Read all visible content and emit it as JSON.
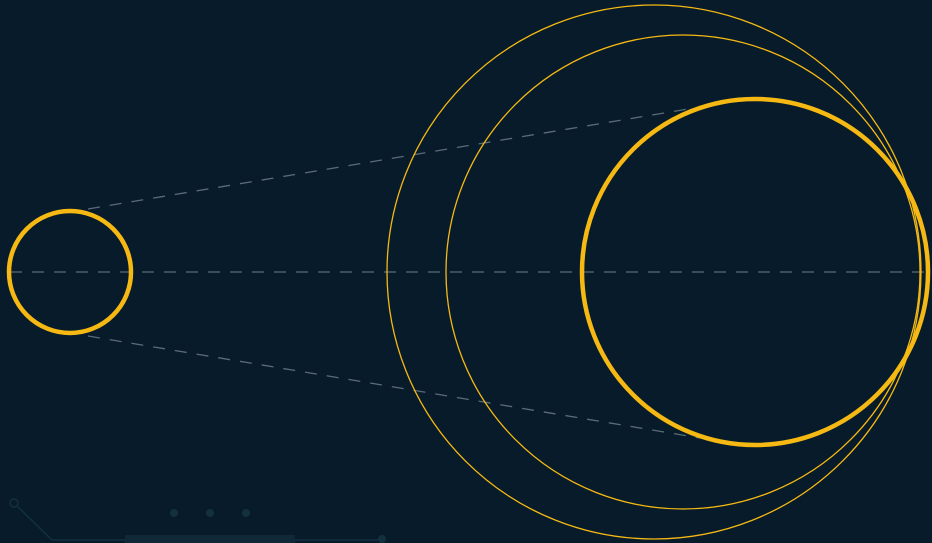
{
  "colors": {
    "background": "#071b2a",
    "accent": "#f6b913",
    "dashed_line": "#5b6b78",
    "decoration": "#13303f"
  },
  "diagram": {
    "circles": [
      {
        "name": "small-circle",
        "role": "source"
      },
      {
        "name": "large-bold-circle",
        "role": "projection"
      },
      {
        "name": "outer-thin-circle",
        "role": "outline"
      },
      {
        "name": "middle-thin-circle",
        "role": "outline"
      }
    ],
    "lines": [
      {
        "name": "center-axis-line",
        "style": "dashed"
      },
      {
        "name": "upper-tangent-line",
        "style": "dashed"
      },
      {
        "name": "lower-tangent-line",
        "style": "dashed"
      }
    ],
    "pagination_dots": 3
  }
}
